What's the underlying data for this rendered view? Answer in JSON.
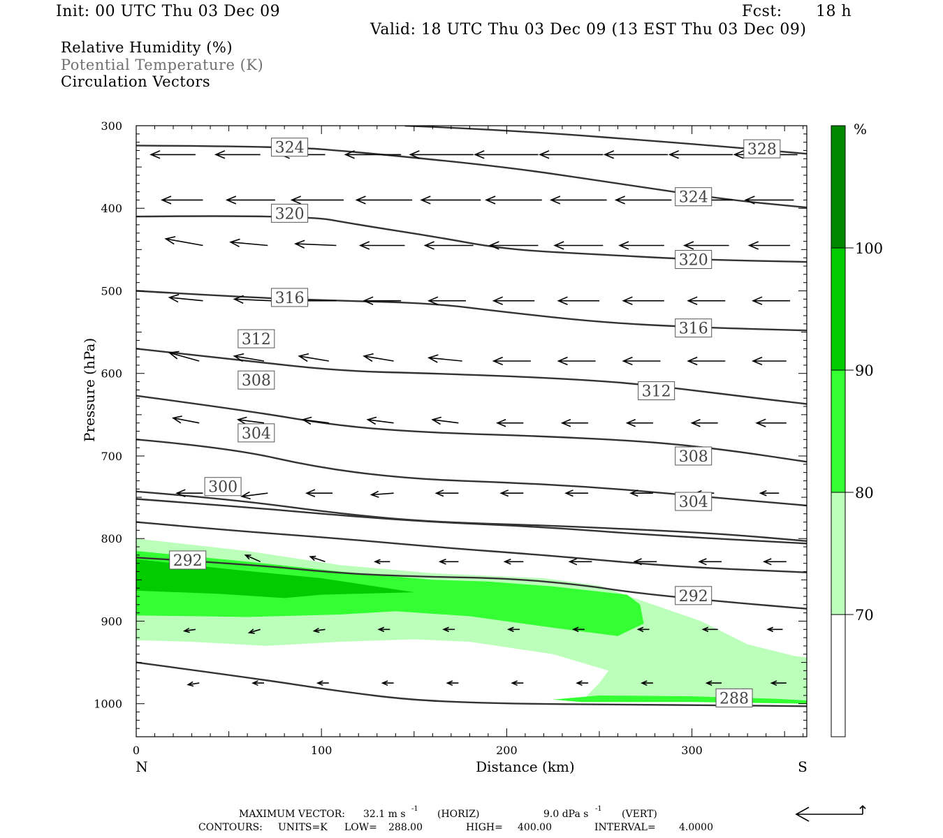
{
  "header": {
    "init": "Init: 00 UTC Thu 03 Dec 09",
    "fcst_label": "Fcst:",
    "fcst_value": "18 h",
    "valid": "Valid: 18 UTC Thu 03 Dec 09 (13 EST Thu 03 Dec 09)"
  },
  "legend_titles": {
    "field1": "Relative Humidity (%)",
    "field2": "Potential Temperature (K)",
    "field3": "Circulation Vectors"
  },
  "footer": {
    "max_vector_label": "MAXIMUM VECTOR:",
    "max_vector_horiz": "32.1 m s",
    "horiz_tag": "(HORIZ)",
    "max_vector_vert": "9.0 dPa s",
    "vert_tag": "(VERT)",
    "exponent": "-1",
    "contours_label": "CONTOURS:",
    "units": "UNITS=K",
    "low": "LOW=",
    "low_value": "288.00",
    "high": "HIGH=",
    "high_value": "400.00",
    "interval": "INTERVAL=",
    "interval_value": "4.0000"
  },
  "chart_data": {
    "type": "cross-section",
    "x_axis": {
      "label": "Distance (km)",
      "range": [
        0,
        362
      ],
      "ticks": [
        0,
        100,
        200,
        300
      ],
      "tick_labels": [
        "0",
        "100",
        "200",
        "300"
      ],
      "left_end": "N",
      "right_end": "S"
    },
    "y_axis": {
      "label": "Pressure (hPa)",
      "range_bottom": 1040,
      "range_top": 300,
      "ticks": [
        300,
        400,
        500,
        600,
        700,
        800,
        900,
        1000
      ],
      "tick_labels": [
        "300",
        "400",
        "500",
        "600",
        "700",
        "800",
        "900",
        "1000"
      ]
    },
    "colorbar": {
      "unit": "%",
      "levels": [
        70,
        80,
        90,
        100
      ],
      "level_labels": [
        "70",
        "80",
        "90",
        "100"
      ],
      "colors": [
        "#ffffff",
        "#bbffbb",
        "#33ff33",
        "#00cc00",
        "#008800"
      ]
    },
    "rh_regions": [
      {
        "level": 70,
        "color": "#bbffbb",
        "points": [
          [
            0,
            800
          ],
          [
            60,
            815
          ],
          [
            110,
            832
          ],
          [
            160,
            842
          ],
          [
            220,
            848
          ],
          [
            250,
            857
          ],
          [
            270,
            873
          ],
          [
            305,
            900
          ],
          [
            330,
            928
          ],
          [
            355,
            942
          ],
          [
            362,
            944
          ],
          [
            362,
            997
          ],
          [
            270,
            998
          ],
          [
            240,
            998
          ],
          [
            250,
            975
          ],
          [
            255,
            960
          ],
          [
            225,
            940
          ],
          [
            180,
            925
          ],
          [
            150,
            922
          ],
          [
            110,
            925
          ],
          [
            70,
            930
          ],
          [
            30,
            925
          ],
          [
            0,
            923
          ]
        ]
      },
      {
        "level": 80,
        "color": "#33ff33",
        "points": [
          [
            0,
            815
          ],
          [
            60,
            828
          ],
          [
            110,
            840
          ],
          [
            160,
            850
          ],
          [
            190,
            852
          ],
          [
            225,
            858
          ],
          [
            265,
            868
          ],
          [
            272,
            880
          ],
          [
            274,
            903
          ],
          [
            260,
            918
          ],
          [
            225,
            908
          ],
          [
            180,
            894
          ],
          [
            140,
            888
          ],
          [
            110,
            892
          ],
          [
            60,
            895
          ],
          [
            0,
            893
          ]
        ]
      },
      {
        "level": 90,
        "color": "#00cc00",
        "points": [
          [
            0,
            825
          ],
          [
            50,
            837
          ],
          [
            100,
            848
          ],
          [
            150,
            865
          ],
          [
            100,
            868
          ],
          [
            80,
            872
          ],
          [
            45,
            867
          ],
          [
            0,
            863
          ]
        ]
      },
      {
        "level": 80,
        "color": "#33ff33",
        "points": [
          [
            225,
            995
          ],
          [
            250,
            990
          ],
          [
            300,
            991
          ],
          [
            345,
            994
          ],
          [
            362,
            996
          ],
          [
            362,
            1000
          ],
          [
            300,
            998
          ],
          [
            240,
            998
          ]
        ]
      }
    ],
    "theta_lines": [
      {
        "value": 288,
        "label": "288",
        "label_at": [
          313,
          993
        ],
        "points": [
          [
            0,
            950
          ],
          [
            60,
            968
          ],
          [
            110,
            985
          ],
          [
            150,
            996
          ],
          [
            200,
            1000
          ],
          [
            260,
            1001
          ],
          [
            320,
            1002
          ],
          [
            362,
            1003
          ]
        ]
      },
      {
        "value": 292,
        "label": "292",
        "label_at": [
          18,
          826
        ],
        "points": [
          [
            0,
            823
          ],
          [
            60,
            831
          ],
          [
            110,
            842
          ],
          [
            150,
            846
          ],
          [
            200,
            848
          ],
          [
            240,
            856
          ],
          [
            270,
            866
          ],
          [
            320,
            877
          ],
          [
            362,
            885
          ]
        ]
      },
      {
        "value": 296,
        "label": "",
        "label_at": null,
        "points": [
          [
            0,
            780
          ],
          [
            50,
            790
          ],
          [
            110,
            800
          ],
          [
            160,
            810
          ],
          [
            220,
            820
          ],
          [
            260,
            828
          ],
          [
            300,
            835
          ],
          [
            362,
            841
          ]
        ]
      },
      {
        "value": 296.5,
        "label": "",
        "label_at": null,
        "points": [
          [
            0,
            752
          ],
          [
            60,
            762
          ],
          [
            110,
            772
          ],
          [
            160,
            780
          ],
          [
            220,
            786
          ],
          [
            280,
            796
          ],
          [
            362,
            806
          ]
        ]
      },
      {
        "value": 300,
        "label": "300",
        "label_at": [
          37,
          737
        ],
        "points": [
          [
            0,
            743
          ],
          [
            50,
            752
          ],
          [
            110,
            770
          ],
          [
            160,
            780
          ],
          [
            220,
            784
          ],
          [
            280,
            790
          ],
          [
            320,
            795
          ],
          [
            362,
            803
          ]
        ]
      },
      {
        "value": 304,
        "label": "304",
        "label_at": [
          55,
          672
        ],
        "points": [
          [
            0,
            680
          ],
          [
            50,
            690
          ],
          [
            100,
            715
          ],
          [
            150,
            728
          ],
          [
            200,
            732
          ],
          [
            250,
            738
          ],
          [
            300,
            748
          ],
          [
            362,
            760
          ]
        ]
      },
      {
        "value": 308,
        "label": "308",
        "label_at": [
          55,
          608
        ],
        "points": [
          [
            0,
            627
          ],
          [
            60,
            645
          ],
          [
            110,
            664
          ],
          [
            160,
            672
          ],
          [
            220,
            676
          ],
          [
            280,
            683
          ],
          [
            320,
            693
          ],
          [
            362,
            707
          ]
        ]
      },
      {
        "value": 312,
        "label": "312",
        "label_at": [
          55,
          558
        ],
        "points": [
          [
            0,
            570
          ],
          [
            60,
            585
          ],
          [
            110,
            597
          ],
          [
            160,
            600
          ],
          [
            220,
            605
          ],
          [
            270,
            612
          ],
          [
            320,
            626
          ],
          [
            362,
            637
          ]
        ]
      },
      {
        "value": 316,
        "label": "316",
        "label_at": [
          73,
          508
        ],
        "points": [
          [
            0,
            500
          ],
          [
            60,
            508
          ],
          [
            110,
            512
          ],
          [
            160,
            515
          ],
          [
            200,
            526
          ],
          [
            250,
            538
          ],
          [
            300,
            544
          ],
          [
            362,
            548
          ]
        ]
      },
      {
        "value": 320,
        "label": "320",
        "label_at": [
          73,
          406
        ],
        "points": [
          [
            0,
            410
          ],
          [
            90,
            408
          ],
          [
            120,
            420
          ],
          [
            160,
            434
          ],
          [
            200,
            450
          ],
          [
            250,
            456
          ],
          [
            300,
            462
          ],
          [
            362,
            465
          ]
        ]
      },
      {
        "value": 324,
        "label": "324",
        "label_at": [
          73,
          326
        ],
        "points": [
          [
            0,
            324
          ],
          [
            80,
            325
          ],
          [
            120,
            332
          ],
          [
            200,
            350
          ],
          [
            260,
            370
          ],
          [
            320,
            390
          ],
          [
            362,
            399
          ]
        ]
      },
      {
        "value": 328,
        "label": "328",
        "label_at": [
          328,
          328
        ],
        "points": [
          [
            145,
            300
          ],
          [
            200,
            305
          ],
          [
            300,
            322
          ],
          [
            362,
            334
          ]
        ]
      }
    ],
    "theta_extra_labels": [
      {
        "label": "324",
        "label_at": [
          291,
          386
        ]
      },
      {
        "label": "320",
        "label_at": [
          291,
          462
        ]
      },
      {
        "label": "316",
        "label_at": [
          291,
          545
        ]
      },
      {
        "label": "312",
        "label_at": [
          271,
          621
        ]
      },
      {
        "label": "308",
        "label_at": [
          291,
          700
        ]
      },
      {
        "label": "304",
        "label_at": [
          291,
          755
        ]
      },
      {
        "label": "292",
        "label_at": [
          291,
          869
        ]
      }
    ],
    "vector_rows": [
      {
        "p": 335,
        "start": 8,
        "spacing": 35,
        "lens": [
          24,
          24,
          24,
          30,
          34,
          34,
          34,
          34,
          34,
          34
        ],
        "dps": [
          0,
          0,
          0,
          0,
          0,
          0,
          0,
          0,
          0,
          0
        ]
      },
      {
        "p": 390,
        "start": 14,
        "spacing": 35,
        "lens": [
          22,
          26,
          28,
          30,
          32,
          30,
          30,
          30,
          28,
          26
        ],
        "dps": [
          0,
          0,
          0,
          0,
          0,
          0,
          0,
          0,
          0,
          0
        ]
      },
      {
        "p": 445,
        "start": 16,
        "spacing": 35,
        "lens": [
          20,
          20,
          22,
          24,
          26,
          26,
          26,
          24,
          24,
          22
        ],
        "dps": [
          -8,
          -4,
          -2,
          0,
          0,
          0,
          0,
          0,
          0,
          0
        ]
      },
      {
        "p": 512,
        "start": 18,
        "spacing": 35,
        "lens": [
          18,
          20,
          20,
          20,
          20,
          22,
          22,
          22,
          20,
          20
        ],
        "dps": [
          -4,
          -2,
          0,
          0,
          0,
          0,
          0,
          0,
          0,
          0
        ]
      },
      {
        "p": 585,
        "start": 18,
        "spacing": 35,
        "lens": [
          16,
          16,
          16,
          16,
          18,
          20,
          20,
          20,
          20,
          18
        ],
        "dps": [
          -10,
          -6,
          -6,
          -6,
          -4,
          0,
          0,
          0,
          0,
          0
        ]
      },
      {
        "p": 660,
        "start": 20,
        "spacing": 35,
        "lens": [
          14,
          14,
          14,
          14,
          14,
          14,
          14,
          14,
          14,
          16
        ],
        "dps": [
          -6,
          -4,
          -4,
          -4,
          -4,
          0,
          0,
          0,
          0,
          0
        ]
      },
      {
        "p": 745,
        "start": 22,
        "spacing": 35,
        "lens": [
          14,
          14,
          14,
          12,
          12,
          12,
          12,
          12,
          10,
          10
        ],
        "dps": [
          0,
          4,
          0,
          2,
          0,
          0,
          0,
          0,
          0,
          0
        ]
      },
      {
        "p": 828,
        "start": 24,
        "spacing": 35,
        "lens": [
          8,
          8,
          8,
          8,
          10,
          10,
          12,
          12,
          12,
          12
        ],
        "dps": [
          -6,
          -8,
          -6,
          0,
          0,
          0,
          0,
          0,
          0,
          0
        ]
      },
      {
        "p": 910,
        "start": 26,
        "spacing": 35,
        "lens": [
          6,
          6,
          6,
          6,
          6,
          6,
          6,
          6,
          8,
          8
        ],
        "dps": [
          2,
          4,
          2,
          0,
          0,
          0,
          0,
          0,
          0,
          0
        ]
      },
      {
        "p": 975,
        "start": 28,
        "spacing": 35,
        "lens": [
          6,
          6,
          6,
          6,
          6,
          6,
          6,
          6,
          8,
          8
        ],
        "dps": [
          2,
          0,
          0,
          0,
          0,
          0,
          0,
          0,
          0,
          0
        ]
      }
    ],
    "reference_vector": {
      "horizontal_value": 32.1,
      "vertical_value": 9.0
    }
  }
}
